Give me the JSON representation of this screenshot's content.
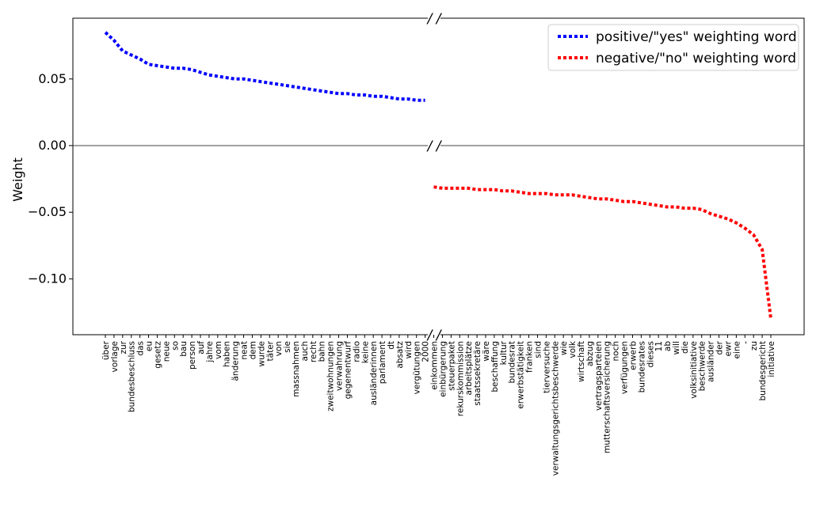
{
  "chart_data": {
    "type": "line",
    "title": "",
    "xlabel": "",
    "ylabel": "Weight",
    "ylim": [
      -0.14,
      0.095
    ],
    "yticks": [
      0.05,
      0.0,
      -0.05,
      -0.1
    ],
    "ytick_labels": [
      "0.05",
      "0.00",
      "−0.05",
      "−0.10"
    ],
    "axis_break_marker": "/ /",
    "grid": false,
    "legend_placement": "top-right",
    "series": [
      {
        "name": "positive/\"yes\" weighting word",
        "color": "#0000ff",
        "line_style": "dotted",
        "categories": [
          "über",
          "vorlage",
          "zur",
          "bundesbeschluss",
          "das",
          "eu",
          "gesetz",
          "neue",
          "so",
          "bau",
          "person",
          "auf",
          "jahre",
          "vom",
          "haben",
          "änderung",
          "neat",
          "dem",
          "wurde",
          "täter",
          "von",
          "sie",
          "massnahmen",
          "auch",
          "recht",
          "bahn",
          "zweitwohnungen",
          "verwahrung",
          "gegenentwurf",
          "radio",
          "keine",
          "ausländerinnen",
          "parlament",
          "dt",
          "absatz",
          "wird",
          "vergütungen",
          "2000"
        ],
        "values": [
          0.085,
          0.079,
          0.071,
          0.068,
          0.065,
          0.061,
          0.06,
          0.059,
          0.058,
          0.058,
          0.057,
          0.055,
          0.053,
          0.052,
          0.051,
          0.05,
          0.05,
          0.049,
          0.048,
          0.047,
          0.046,
          0.045,
          0.044,
          0.043,
          0.042,
          0.041,
          0.04,
          0.039,
          0.039,
          0.038,
          0.038,
          0.037,
          0.037,
          0.036,
          0.035,
          0.035,
          0.034,
          0.034
        ]
      },
      {
        "name": "negative/\"no\" weighting word",
        "color": "#ff0000",
        "line_style": "dotted",
        "categories": [
          "einkommen",
          "einbürgerung",
          "steuerpaket",
          "rekurskommission",
          "arbeitsplätze",
          "staatssekretäre",
          "wäre",
          "beschaffung",
          "kultur",
          "bundesrat",
          "erwerbstätigkeit",
          "franken",
          "sind",
          "tierversuche",
          "verwaltungsgerichtsbeschwerde",
          "wie",
          "volk",
          "wirtschaft",
          "abzug",
          "vertragsparteien",
          "mutterschaftsversicherung",
          "noch",
          "verfügungen",
          "erwerb",
          "bundesrates",
          "dieses",
          "11",
          "ab",
          "will",
          "die",
          "volksinitiative",
          "beschwerde",
          "ausländer",
          "der",
          "ewr",
          "eine",
          "-",
          "zu",
          "bundesgericht",
          "initiative"
        ],
        "values": [
          -0.031,
          -0.032,
          -0.032,
          -0.032,
          -0.032,
          -0.033,
          -0.033,
          -0.033,
          -0.034,
          -0.034,
          -0.035,
          -0.036,
          -0.036,
          -0.036,
          -0.037,
          -0.037,
          -0.037,
          -0.038,
          -0.039,
          -0.04,
          -0.04,
          -0.041,
          -0.042,
          -0.042,
          -0.043,
          -0.044,
          -0.045,
          -0.046,
          -0.046,
          -0.047,
          -0.047,
          -0.048,
          -0.051,
          -0.053,
          -0.055,
          -0.058,
          -0.062,
          -0.067,
          -0.078,
          -0.13
        ]
      }
    ]
  }
}
